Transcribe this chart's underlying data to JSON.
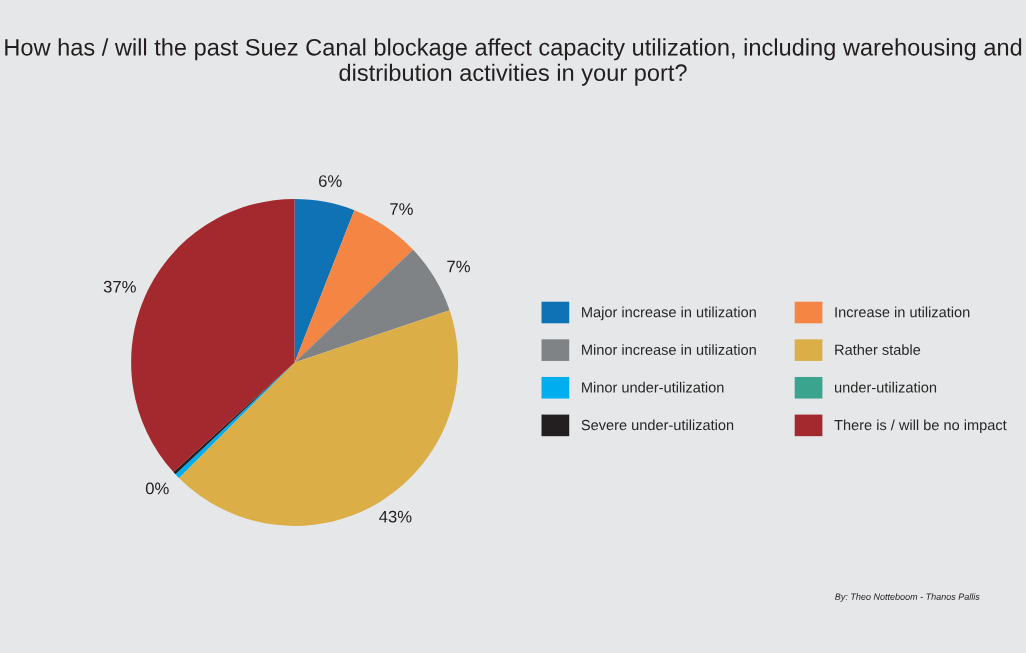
{
  "chart_data": {
    "type": "pie",
    "title": "How has / will the past Suez Canal blockage affect capacity utilization, including warehousing and distribution activities in your port?",
    "categories": [
      "Major increase in utilization",
      "Increase in utilization",
      "Minor increase in utilization",
      "Rather stable",
      "Minor under-utilization",
      "under-utilization",
      "Severe under-utilization",
      "There is / will be no impact"
    ],
    "values": [
      6,
      7,
      7,
      43,
      0.5,
      0,
      0.3,
      37
    ],
    "value_labels": [
      "6%",
      "7%",
      "7%",
      "43%",
      "0%",
      null,
      null,
      "37%"
    ],
    "colors": [
      "#0f72b5",
      "#f58542",
      "#7f8385",
      "#dbae48",
      "#00aeef",
      "#3aa48f",
      "#231f20",
      "#a4292f"
    ],
    "legend": "right",
    "annotations": [
      "By: Theo Notteboom - Thanos Pallis"
    ]
  }
}
